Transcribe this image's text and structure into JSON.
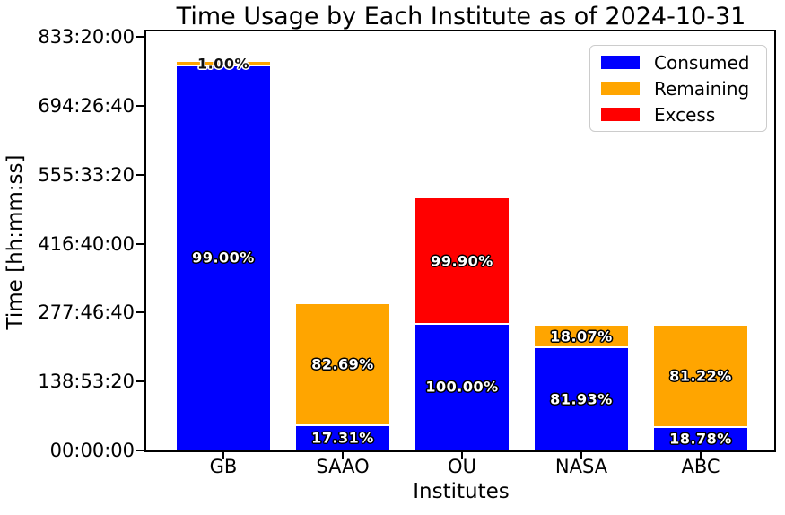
{
  "title": "Time Usage by Each Institute as of 2024-10-31",
  "axes": {
    "xlabel": "Institutes",
    "ylabel": "Time [hh:mm:ss]",
    "yticks": [
      {
        "label": "00:00:00",
        "hours": 0
      },
      {
        "label": "138:53:20",
        "hours": 138.889
      },
      {
        "label": "277:46:40",
        "hours": 277.778
      },
      {
        "label": "416:40:00",
        "hours": 416.667
      },
      {
        "label": "555:33:20",
        "hours": 555.556
      },
      {
        "label": "694:26:40",
        "hours": 694.444
      },
      {
        "label": "833:20:00",
        "hours": 833.333
      }
    ],
    "ylim_hours": [
      0,
      844.4
    ]
  },
  "legend": {
    "items": [
      {
        "label": "Consumed",
        "color": "#0000ff"
      },
      {
        "label": "Remaining",
        "color": "#ffa500"
      },
      {
        "label": "Excess",
        "color": "#ff0000"
      }
    ]
  },
  "chart_data": {
    "type": "bar",
    "stacked": true,
    "title": "Time Usage by Each Institute as of 2024-10-31",
    "xlabel": "Institutes",
    "ylabel": "Time [hh:mm:ss]",
    "unit": "hours (hh:mm:ss axis)",
    "categories": [
      "GB",
      "SAAO",
      "OU",
      "NASA",
      "ABC"
    ],
    "ylim": [
      0,
      844.4
    ],
    "grid": false,
    "legend_position": "upper right",
    "series": [
      {
        "name": "Consumed",
        "color": "#0000ff",
        "values_hours": [
          776.2,
          51.3,
          255.0,
          207.3,
          47.5
        ],
        "pct_labels": [
          "99.00%",
          "17.31%",
          "100.00%",
          "81.93%",
          "18.78%"
        ],
        "label_styles": [
          "light",
          "light",
          "light",
          "light",
          "light"
        ]
      },
      {
        "name": "Remaining",
        "color": "#ffa500",
        "values_hours": [
          7.8,
          244.7,
          0,
          45.7,
          205.5
        ],
        "pct_labels": [
          "1.00%",
          "82.69%",
          "",
          "18.07%",
          "81.22%"
        ],
        "label_styles": [
          "dark",
          "light",
          "",
          "light",
          "light"
        ]
      },
      {
        "name": "Excess",
        "color": "#ff0000",
        "values_hours": [
          0,
          0,
          254.7,
          0,
          0
        ],
        "pct_labels": [
          "",
          "",
          "99.90%",
          "",
          ""
        ],
        "label_styles": [
          "",
          "",
          "light",
          "",
          ""
        ]
      }
    ]
  }
}
